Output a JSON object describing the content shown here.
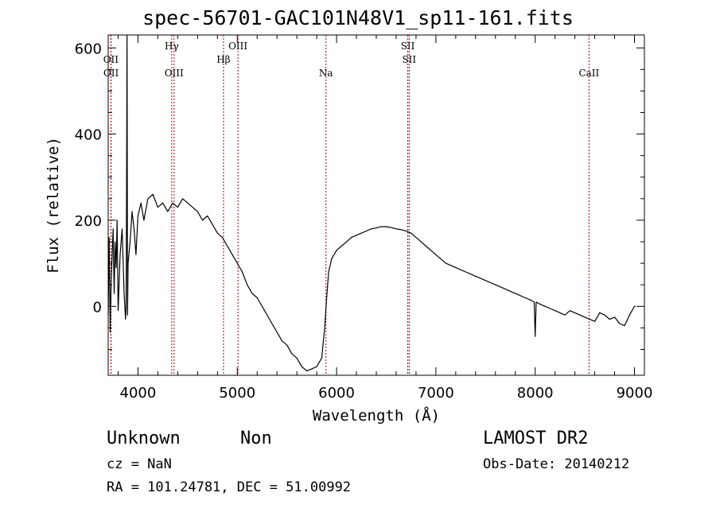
{
  "title": "spec-56701-GAC101N48V1_sp11-161.fits",
  "footer": {
    "class_label": "Unknown",
    "subclass_label": "Non",
    "survey": "LAMOST DR2",
    "cz": "cz = NaN",
    "obs_date": "Obs-Date: 20140212",
    "coords": "RA = 101.24781, DEC =  51.00992"
  },
  "chart_data": {
    "type": "line",
    "xlabel": "Wavelength (Å)",
    "ylabel": "Flux (relative)",
    "xlim": [
      3700,
      9100
    ],
    "ylim": [
      -160,
      630
    ],
    "xticks": [
      4000,
      5000,
      6000,
      7000,
      8000,
      9000
    ],
    "yticks": [
      0,
      200,
      400,
      600
    ],
    "grid": false,
    "line_color": "#000000",
    "marker_color": "#aa0000",
    "lines": [
      {
        "label": "OII",
        "x": 3727,
        "row": 1
      },
      {
        "label": "OII",
        "x": 3729,
        "row": 2
      },
      {
        "label": "Hγ",
        "x": 4340,
        "row": 0
      },
      {
        "label": "OIII",
        "x": 4363,
        "row": 2
      },
      {
        "label": "Hβ",
        "x": 4861,
        "row": 1
      },
      {
        "label": "OIII",
        "x": 5007,
        "row": 0
      },
      {
        "label": "Na",
        "x": 5893,
        "row": 2
      },
      {
        "label": "SII",
        "x": 6717,
        "row": 0
      },
      {
        "label": "SII",
        "x": 6731,
        "row": 1
      },
      {
        "label": "CaII",
        "x": 8542,
        "row": 2
      }
    ],
    "series": [
      {
        "x": [
          3700,
          3710,
          3720,
          3730,
          3740,
          3750,
          3760,
          3770,
          3780,
          3790,
          3800,
          3820,
          3840,
          3860,
          3875,
          3880,
          3885,
          3890,
          3895,
          3900,
          3920,
          3940,
          3960,
          3980,
          4000,
          4030,
          4060,
          4100,
          4150,
          4200,
          4250,
          4300,
          4350,
          4400,
          4450,
          4500,
          4550,
          4600,
          4650,
          4700,
          4750,
          4800,
          4850,
          4900,
          4950,
          5000,
          5050,
          5100,
          5150,
          5200,
          5250,
          5300,
          5350,
          5400,
          5450,
          5500,
          5550,
          5600,
          5650,
          5700,
          5750,
          5800,
          5850,
          5880,
          5900,
          5920,
          5950,
          6000,
          6050,
          6100,
          6150,
          6200,
          6250,
          6300,
          6350,
          6400,
          6450,
          6500,
          6550,
          6600,
          6650,
          6700,
          6750,
          6800,
          6850,
          6900,
          6950,
          7000,
          7050,
          7100,
          7150,
          7200,
          7250,
          7300,
          7350,
          7400,
          7450,
          7500,
          7550,
          7600,
          7650,
          7700,
          7750,
          7800,
          7850,
          7900,
          7950,
          7990,
          8000,
          8010,
          8050,
          8100,
          8150,
          8200,
          8250,
          8300,
          8350,
          8400,
          8450,
          8500,
          8550,
          8600,
          8650,
          8700,
          8750,
          8800,
          8850,
          8900,
          8950,
          9000,
          9010
        ],
        "y": [
          -20,
          160,
          -60,
          60,
          120,
          180,
          30,
          150,
          90,
          200,
          -10,
          120,
          180,
          30,
          -30,
          0,
          260,
          640,
          -20,
          100,
          150,
          220,
          180,
          120,
          210,
          240,
          200,
          250,
          260,
          230,
          240,
          220,
          240,
          230,
          250,
          240,
          230,
          220,
          200,
          210,
          190,
          170,
          160,
          140,
          120,
          100,
          80,
          50,
          30,
          20,
          0,
          -20,
          -40,
          -60,
          -80,
          -90,
          -110,
          -120,
          -140,
          -150,
          -145,
          -140,
          -120,
          -50,
          20,
          80,
          110,
          130,
          140,
          150,
          160,
          165,
          170,
          175,
          180,
          182,
          185,
          185,
          183,
          180,
          178,
          175,
          170,
          160,
          150,
          140,
          130,
          120,
          110,
          100,
          95,
          90,
          85,
          80,
          75,
          70,
          65,
          60,
          55,
          50,
          45,
          40,
          35,
          30,
          25,
          20,
          15,
          10,
          -70,
          10,
          5,
          0,
          -5,
          -10,
          -15,
          -20,
          -10,
          -15,
          -20,
          -25,
          -30,
          -35,
          -15,
          -20,
          -30,
          -25,
          -40,
          -45,
          -20,
          0,
          0
        ]
      }
    ]
  }
}
